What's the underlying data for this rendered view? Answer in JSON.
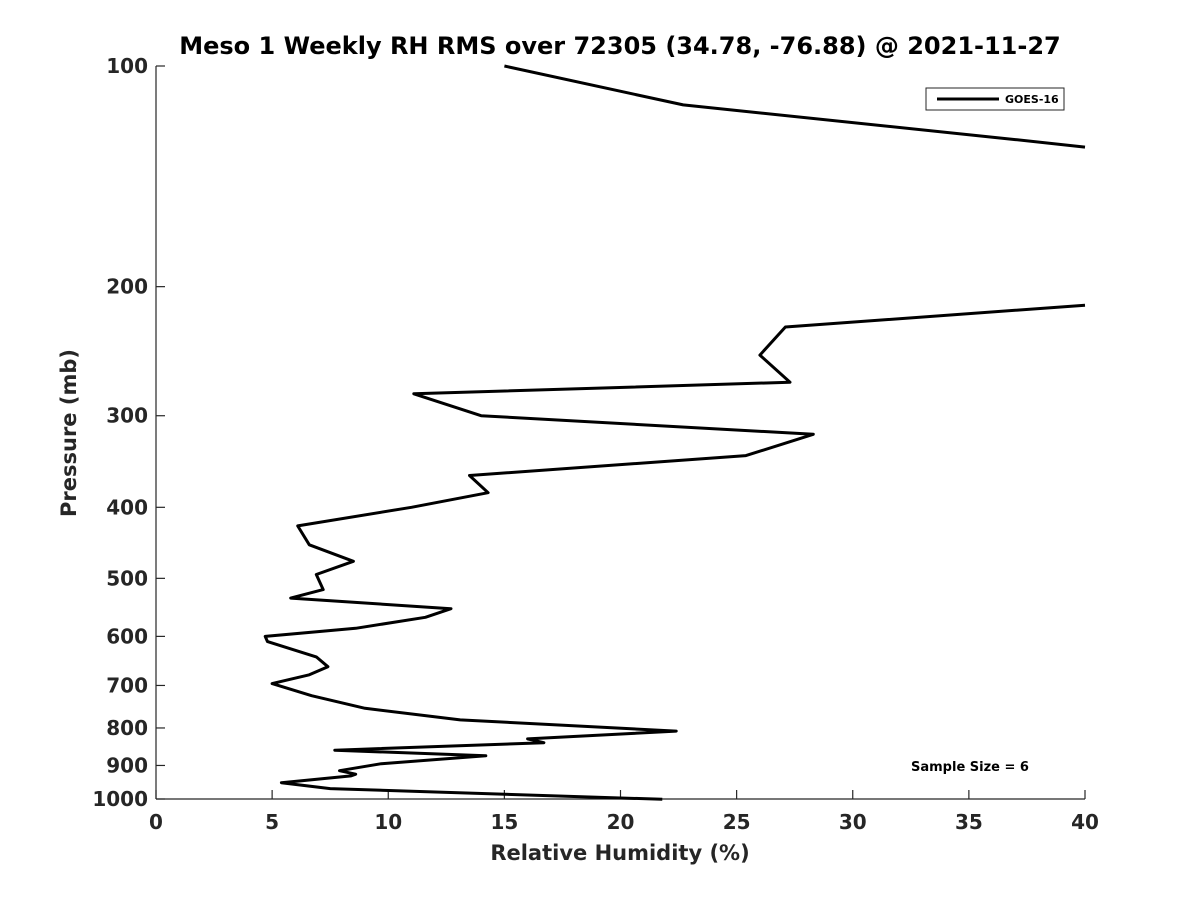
{
  "chart_data": {
    "type": "line",
    "title": "Meso 1 Weekly RH RMS over 72305 (34.78, -76.88) @ 2021-11-27",
    "xlabel": "Relative Humidity (%)",
    "ylabel": "Pressure (mb)",
    "xlim": [
      0,
      40
    ],
    "ylim": [
      100,
      1000
    ],
    "y_scale": "log",
    "y_reversed": true,
    "xticks": [
      0,
      5,
      10,
      15,
      20,
      25,
      30,
      35,
      40
    ],
    "xtick_labels": [
      "0",
      "5",
      "10",
      "15",
      "20",
      "25",
      "30",
      "35",
      "40"
    ],
    "yticks": [
      100,
      200,
      300,
      400,
      500,
      600,
      700,
      800,
      900,
      1000
    ],
    "ytick_labels": [
      "100",
      "200",
      "300",
      "400",
      "500",
      "600",
      "700",
      "800",
      "900",
      "1000"
    ],
    "grid": false,
    "legend_position": "top-right",
    "note": "Sample Size = 6",
    "series": [
      {
        "name": "GOES-16",
        "color": "#000000",
        "x": [
          15.0,
          22.7,
          37.0,
          40.0,
          null,
          40.0,
          27.1,
          26.0,
          27.3,
          11.1,
          14.0,
          28.3,
          25.4,
          13.5,
          14.3,
          11.0,
          6.1,
          6.6,
          8.5,
          6.9,
          7.2,
          5.8,
          12.7,
          11.6,
          8.6,
          4.7,
          4.8,
          6.9,
          7.4,
          6.6,
          5.0,
          6.7,
          9.0,
          13.1,
          22.4,
          16.0,
          16.7,
          7.7,
          14.2,
          9.7,
          7.9,
          8.6,
          8.4,
          5.4,
          7.5,
          21.8
        ],
        "y": [
          100,
          113,
          126,
          129,
          null,
          212,
          227,
          248,
          270,
          280,
          300,
          318,
          340,
          362,
          382,
          400,
          424,
          450,
          474,
          494,
          518,
          532,
          550,
          565,
          585,
          600,
          610,
          640,
          660,
          677,
          696,
          723,
          752,
          780,
          808,
          828,
          838,
          858,
          873,
          895,
          915,
          925,
          930,
          950,
          968,
          1001
        ]
      }
    ]
  }
}
